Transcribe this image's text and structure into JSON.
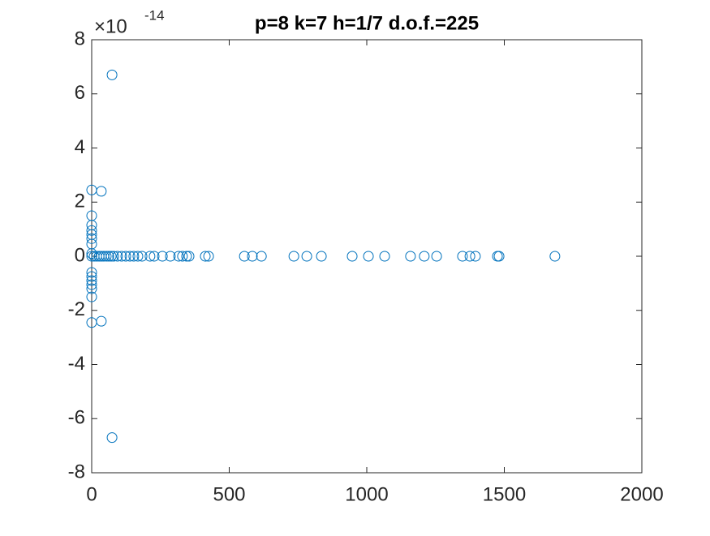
{
  "chart_data": {
    "type": "scatter",
    "title": "p=8 k=7 h=1/7 d.o.f.=225",
    "y_exponent_base": "×10",
    "y_exponent": "-14",
    "series": [
      {
        "color": "#0072bd",
        "x": [
          74,
          74,
          0,
          35,
          35,
          0,
          0,
          0,
          0,
          0,
          0,
          0,
          0,
          0,
          0,
          0,
          0,
          0,
          0,
          0,
          9,
          18,
          27,
          35,
          44,
          53,
          62,
          71,
          80,
          94,
          109,
          124,
          139,
          153,
          168,
          183,
          212,
          227,
          257,
          286,
          316,
          330,
          345,
          354,
          413,
          425,
          555,
          584,
          617,
          735,
          782,
          835,
          947,
          1006,
          1065,
          1159,
          1209,
          1254,
          1348,
          1375,
          1395,
          1475,
          1481,
          1684
        ],
        "values": [
          6.7,
          -6.7,
          2.45,
          2.4,
          -2.4,
          -2.45,
          1.5,
          1.15,
          0.95,
          0.8,
          0.65,
          0.45,
          -0.6,
          -0.75,
          -0.9,
          -1.05,
          -1.2,
          -1.5,
          0.1,
          0,
          0,
          0,
          0,
          0,
          0,
          0,
          0,
          0,
          0,
          0,
          0,
          0,
          0,
          0,
          0,
          0,
          0,
          0,
          0,
          0,
          0,
          0,
          0,
          0,
          0,
          0,
          0,
          0,
          0,
          0,
          0,
          0,
          0,
          0,
          0,
          0,
          0,
          0,
          0,
          0,
          0,
          0,
          0,
          0
        ]
      }
    ],
    "xlim": [
      0,
      2000
    ],
    "xticks": [
      0,
      500,
      1000,
      1500,
      2000
    ],
    "ylim": [
      -8,
      8
    ],
    "yticks": [
      -8,
      -6,
      -4,
      -2,
      0,
      2,
      4,
      6,
      8
    ]
  }
}
